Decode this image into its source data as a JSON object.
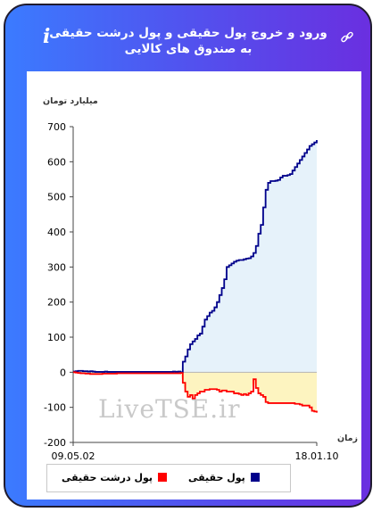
{
  "header": {
    "title": "ورود و خروج پول حقیقی و پول درشت حقیقی به صندوق های کالایی",
    "info_icon": "i"
  },
  "watermark": "LiveTSE.ir",
  "chart_data": {
    "type": "line",
    "ylabel": "میلیارد تومان",
    "xlabel": "زمان",
    "ylim": [
      -200,
      700
    ],
    "yticks": [
      -200,
      -100,
      0,
      100,
      200,
      300,
      400,
      500,
      600,
      700
    ],
    "x_tick_labels": [
      "09.05.02",
      "18.01.10"
    ],
    "grid": false,
    "legend_position": "bottom",
    "colors": {
      "real_money": "#00008b",
      "big_real_money": "#ff0000",
      "fill_pos": "#e6f2fa",
      "fill_neg": "#fdf4c0"
    },
    "series": [
      {
        "name": "پول حقیقی",
        "color": "#00008b",
        "values": [
          2,
          3,
          4,
          4,
          3,
          3,
          2,
          3,
          2,
          1,
          1,
          1,
          1,
          2,
          1,
          1,
          1,
          1,
          1,
          1,
          1,
          1,
          1,
          1,
          1,
          1,
          1,
          1,
          1,
          1,
          1,
          1,
          1,
          1,
          1,
          1,
          1,
          1,
          1,
          1,
          1,
          2,
          1,
          2,
          0,
          30,
          45,
          65,
          80,
          88,
          95,
          105,
          110,
          130,
          150,
          160,
          170,
          175,
          185,
          200,
          220,
          240,
          265,
          300,
          305,
          310,
          315,
          318,
          320,
          320,
          322,
          324,
          325,
          330,
          340,
          360,
          395,
          420,
          470,
          520,
          540,
          545,
          545,
          546,
          548,
          555,
          560,
          560,
          562,
          565,
          575,
          585,
          595,
          605,
          615,
          625,
          635,
          645,
          650,
          655,
          662
        ]
      },
      {
        "name": "پول درشت حقیقی",
        "color": "#ff0000",
        "values": [
          0,
          -1,
          -2,
          -3,
          -3,
          -4,
          -4,
          -5,
          -5,
          -5,
          -5,
          -5,
          -4,
          -4,
          -4,
          -4,
          -4,
          -4,
          -3,
          -3,
          -3,
          -3,
          -3,
          -3,
          -3,
          -3,
          -3,
          -3,
          -3,
          -3,
          -3,
          -3,
          -3,
          -3,
          -3,
          -3,
          -3,
          -3,
          -3,
          -3,
          -3,
          -3,
          -3,
          -3,
          -2,
          -30,
          -55,
          -70,
          -65,
          -75,
          -65,
          -60,
          -55,
          -55,
          -50,
          -50,
          -48,
          -48,
          -48,
          -50,
          -55,
          -52,
          -52,
          -55,
          -55,
          -55,
          -60,
          -60,
          -62,
          -65,
          -62,
          -65,
          -60,
          -55,
          -20,
          -45,
          -60,
          -65,
          -70,
          -85,
          -88,
          -88,
          -88,
          -88,
          -88,
          -88,
          -88,
          -88,
          -88,
          -88,
          -88,
          -90,
          -90,
          -92,
          -95,
          -95,
          -95,
          -100,
          -110,
          -112,
          -115
        ]
      }
    ]
  }
}
